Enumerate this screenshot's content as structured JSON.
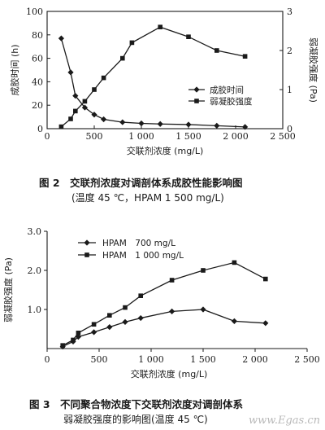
{
  "figure2": {
    "caption_title": "图 2　交联剂浓度对调剖体系成胶性能影响图",
    "caption_sub": "(温度 45 ℃，HPAM 1 500 mg/L)"
  },
  "figure3": {
    "caption_title": "图 3　不同聚合物浓度下交联剂浓度对调剖体系",
    "caption_sub": "弱凝胶强度的影响图(温度 45 ℃)"
  },
  "watermark": "www.Egas.cn",
  "chart_data": [
    {
      "type": "line",
      "xlabel": "交联剂浓度 (mg/L)",
      "ylabel_left": "成胶时间 (h)",
      "ylabel_right": "弱凝胶强度 (Pa)",
      "xlim": [
        0,
        2500
      ],
      "ylim_left": [
        0,
        100
      ],
      "ylim_right": [
        0,
        3
      ],
      "x_ticks": [
        0,
        500,
        1000,
        1500,
        2000,
        2500
      ],
      "x_tick_labels": [
        "0",
        "500",
        "1 000",
        "1 500",
        "2 000",
        "2 500"
      ],
      "y_left_ticks": [
        0,
        20,
        40,
        60,
        80,
        100
      ],
      "y_left_tick_labels": [
        "0",
        "20",
        "40",
        "60",
        "80",
        "100"
      ],
      "y_right_ticks": [
        0,
        1,
        2,
        3
      ],
      "y_right_tick_labels": [
        "0",
        "1",
        "2",
        "3"
      ],
      "legend_position": "right",
      "series": [
        {
          "name": "成胶时间",
          "axis": "left",
          "marker": "diamond",
          "x": [
            150,
            250,
            300,
            400,
            500,
            600,
            800,
            1000,
            1200,
            1500,
            1800,
            2100
          ],
          "y": [
            77,
            48,
            28,
            18,
            12,
            8,
            5.5,
            4.5,
            4,
            3.5,
            2.5,
            1.5
          ]
        },
        {
          "name": "弱凝胶强度",
          "axis": "right",
          "marker": "square",
          "x": [
            150,
            250,
            300,
            400,
            500,
            600,
            800,
            900,
            1200,
            1500,
            1800,
            2100
          ],
          "y": [
            0.05,
            0.25,
            0.45,
            0.7,
            1.0,
            1.3,
            1.8,
            2.2,
            2.6,
            2.35,
            2.0,
            1.85
          ]
        }
      ]
    },
    {
      "type": "line",
      "xlabel": "交联剂浓度 (mg/L)",
      "ylabel": "弱凝胶强度 (Pa)",
      "xlim": [
        0,
        2500
      ],
      "ylim": [
        0,
        3.0
      ],
      "x_ticks": [
        0,
        500,
        1000,
        1500,
        2000,
        2500
      ],
      "x_tick_labels": [
        "0",
        "500",
        "1 000",
        "1 500",
        "2 000",
        "2 500"
      ],
      "y_ticks": [
        1.0,
        2.0,
        3.0
      ],
      "y_tick_labels": [
        "1.0",
        "2.0",
        "3.0"
      ],
      "legend_position": "top-left",
      "series": [
        {
          "name": "HPAM　700 mg/L",
          "marker": "diamond",
          "x": [
            150,
            250,
            300,
            450,
            600,
            750,
            900,
            1200,
            1500,
            1800,
            2100
          ],
          "y": [
            0.05,
            0.18,
            0.3,
            0.42,
            0.55,
            0.68,
            0.78,
            0.95,
            1.0,
            0.7,
            0.65
          ]
        },
        {
          "name": "HPAM　1 000 mg/L",
          "marker": "square",
          "x": [
            150,
            250,
            300,
            450,
            600,
            750,
            900,
            1200,
            1500,
            1800,
            2100
          ],
          "y": [
            0.08,
            0.22,
            0.4,
            0.62,
            0.85,
            1.05,
            1.35,
            1.75,
            2.0,
            2.2,
            1.78
          ]
        }
      ]
    }
  ]
}
